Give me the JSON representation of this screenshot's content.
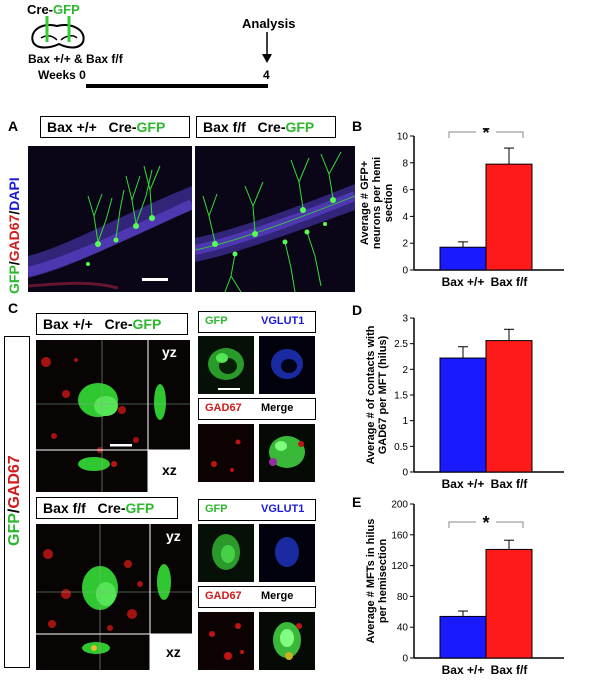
{
  "timeline": {
    "injection_label_prefix": "Cre-",
    "injection_label_gfp": "GFP",
    "genotypes": "Bax +/+ & Bax f/f",
    "weeks_label": "Weeks 0",
    "analysis_label": "Analysis",
    "end_week": "4"
  },
  "panel_a": {
    "letter": "A",
    "left_label_genotype": "Bax +/+",
    "right_label_genotype": "Bax f/f",
    "cre": "Cre-",
    "gfp": "GFP",
    "stain_gfp": "GFP",
    "stain_sep1": "/",
    "stain_gad": "GAD67",
    "stain_sep2": "/",
    "stain_dapi": "DAPI"
  },
  "panel_c": {
    "letter": "C",
    "top_genotype": "Bax +/+",
    "bottom_genotype": "Bax f/f",
    "cre": "Cre-",
    "gfp": "GFP",
    "yz": "yz",
    "xz": "xz",
    "stain_gfp": "GFP",
    "stain_sep": "/",
    "stain_gad": "GAD67",
    "tile_gfp": "GFP",
    "tile_vglut1": "VGLUT1",
    "tile_gad67": "GAD67",
    "tile_merge": "Merge"
  },
  "chart_data": [
    {
      "panel": "B",
      "type": "bar",
      "categories": [
        "Bax +/+",
        "Bax f/f"
      ],
      "values": [
        1.7,
        7.9
      ],
      "errors": [
        0.4,
        1.2
      ],
      "colors": [
        "#1a1aff",
        "#ff1a1a"
      ],
      "ylabel": "Average # GFP+ neurons per hemi section",
      "ylim": [
        0,
        10
      ],
      "yticks": [
        0,
        2,
        4,
        6,
        8,
        10
      ],
      "significance": "*"
    },
    {
      "panel": "D",
      "type": "bar",
      "categories": [
        "Bax +/+",
        "Bax f/f"
      ],
      "values": [
        2.22,
        2.56
      ],
      "errors": [
        0.22,
        0.22
      ],
      "colors": [
        "#1a1aff",
        "#ff1a1a"
      ],
      "ylabel": "Average # of contacts with GAD67 per MFT (hilus)",
      "ylim": [
        0,
        3
      ],
      "yticks": [
        0,
        0.5,
        1,
        1.5,
        2,
        2.5,
        3
      ],
      "significance": ""
    },
    {
      "panel": "E",
      "type": "bar",
      "categories": [
        "Bax +/+",
        "Bax f/f"
      ],
      "values": [
        54,
        141
      ],
      "errors": [
        7,
        12
      ],
      "colors": [
        "#1a1aff",
        "#ff1a1a"
      ],
      "ylabel": "Average # MFTs in hilus per hemisection",
      "ylim": [
        0,
        200
      ],
      "yticks": [
        0,
        40,
        80,
        120,
        160,
        200
      ],
      "significance": "*"
    }
  ]
}
